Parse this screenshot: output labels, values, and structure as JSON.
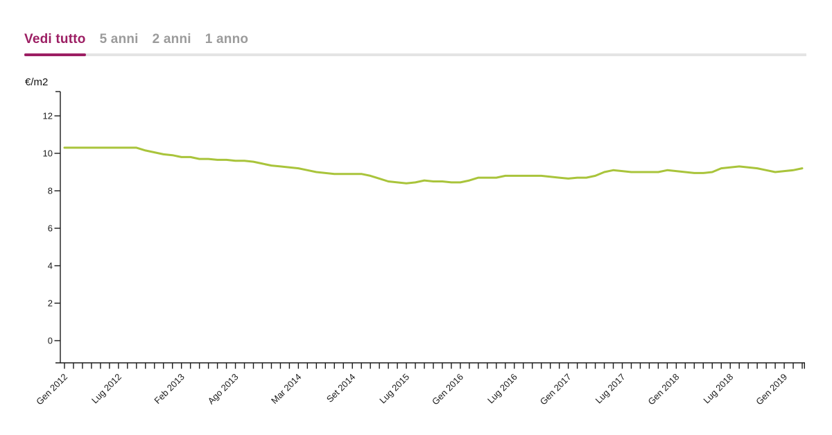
{
  "tabs": {
    "items": [
      {
        "label": "Vedi tutto",
        "active": true
      },
      {
        "label": "5 anni",
        "active": false
      },
      {
        "label": "2 anni",
        "active": false
      },
      {
        "label": "1 anno",
        "active": false
      }
    ]
  },
  "colors": {
    "accent": "#9c1e63",
    "inactive_tab": "#9b9b9b",
    "tab_track": "#e4e4e4",
    "line": "#a9c43b",
    "axis": "#1a1a1a"
  },
  "chart_data": {
    "type": "line",
    "ylabel": "€/m2",
    "ylim": [
      0,
      13.3
    ],
    "y_ticks": [
      0,
      2,
      4,
      6,
      8,
      10,
      12
    ],
    "grid": false,
    "legend": "none",
    "x_labeled_ticks": [
      {
        "index": 0,
        "label": "Gen 2012"
      },
      {
        "index": 6,
        "label": "Lug 2012"
      },
      {
        "index": 13,
        "label": "Feb 2013"
      },
      {
        "index": 19,
        "label": "Ago 2013"
      },
      {
        "index": 26,
        "label": "Mar 2014"
      },
      {
        "index": 32,
        "label": "Set 2014"
      },
      {
        "index": 38,
        "label": "Lug 2015"
      },
      {
        "index": 44,
        "label": "Gen 2016"
      },
      {
        "index": 50,
        "label": "Lug 2016"
      },
      {
        "index": 56,
        "label": "Gen 2017"
      },
      {
        "index": 62,
        "label": "Lug 2017"
      },
      {
        "index": 68,
        "label": "Gen 2018"
      },
      {
        "index": 74,
        "label": "Lug 2018"
      },
      {
        "index": 80,
        "label": "Gen 2019"
      }
    ],
    "values": [
      10.3,
      10.3,
      10.3,
      10.3,
      10.3,
      10.3,
      10.3,
      10.3,
      10.3,
      10.15,
      10.05,
      9.95,
      9.9,
      9.8,
      9.8,
      9.7,
      9.7,
      9.65,
      9.65,
      9.6,
      9.6,
      9.55,
      9.45,
      9.35,
      9.3,
      9.25,
      9.2,
      9.1,
      9.0,
      8.95,
      8.9,
      8.9,
      8.9,
      8.9,
      8.8,
      8.65,
      8.5,
      8.45,
      8.4,
      8.45,
      8.55,
      8.5,
      8.5,
      8.45,
      8.45,
      8.55,
      8.7,
      8.7,
      8.7,
      8.8,
      8.8,
      8.8,
      8.8,
      8.8,
      8.75,
      8.7,
      8.65,
      8.7,
      8.7,
      8.8,
      9.0,
      9.1,
      9.05,
      9.0,
      9.0,
      9.0,
      9.0,
      9.1,
      9.05,
      9.0,
      8.95,
      8.95,
      9.0,
      9.2,
      9.25,
      9.3,
      9.25,
      9.2,
      9.1,
      9.0,
      9.05,
      9.1,
      9.2
    ]
  }
}
